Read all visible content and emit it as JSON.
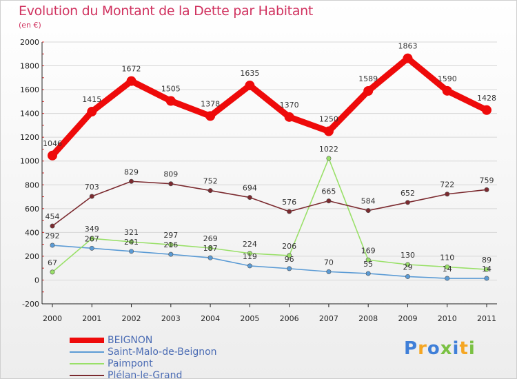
{
  "chart_data": {
    "type": "line",
    "title": "Evolution du Montant de la Dette par Habitant",
    "subtitle": "(en €)",
    "xlabel": "",
    "ylabel": "",
    "ylim": [
      -200,
      2000
    ],
    "y_ticks": [
      "-200",
      "0",
      "200",
      "400",
      "600",
      "800",
      "1000",
      "1200",
      "1400",
      "1600",
      "1800",
      "2000"
    ],
    "categories": [
      "2000",
      "2001",
      "2002",
      "2003",
      "2004",
      "2005",
      "2006",
      "2007",
      "2008",
      "2009",
      "2010",
      "2011"
    ],
    "series": [
      {
        "name": "BEIGNON",
        "color": "#ee0a0a",
        "values": [
          1046,
          1415,
          1672,
          1505,
          1378,
          1635,
          1370,
          1250,
          1589,
          1863,
          1590,
          1428
        ],
        "labels": [
          "1046",
          "1415",
          "1672",
          "1505",
          "1378",
          "1635",
          "1370",
          "1250",
          "1589",
          "1863",
          "1590",
          "1428"
        ]
      },
      {
        "name": "Saint-Malo-de-Beignon",
        "color": "#5b9bd5",
        "values": [
          292,
          267,
          241,
          216,
          187,
          119,
          96,
          70,
          55,
          29,
          14,
          14
        ],
        "labels": [
          "292",
          "267",
          "241",
          "216",
          "187",
          "119",
          "96",
          "70",
          "55",
          "29",
          "14",
          "14"
        ]
      },
      {
        "name": "Paimpont",
        "color": "#99e068",
        "values": [
          67,
          349,
          321,
          297,
          269,
          224,
          206,
          1022,
          169,
          130,
          110,
          89
        ],
        "labels": [
          "67",
          "349",
          "321",
          "297",
          "269",
          "224",
          "206",
          "1022",
          "169",
          "130",
          "110",
          "89"
        ]
      },
      {
        "name": "Plélan-le-Grand",
        "color": "#7b2a2f",
        "values": [
          454,
          703,
          829,
          809,
          752,
          694,
          576,
          665,
          584,
          652,
          722,
          759
        ],
        "labels": [
          "454",
          "703",
          "829",
          "809",
          "752",
          "694",
          "576",
          "665",
          "584",
          "652",
          "722",
          "759"
        ]
      }
    ],
    "legend_position": "bottom-left"
  },
  "brand": {
    "letters": [
      "P",
      "r",
      "o",
      "x",
      "i",
      "t",
      "i"
    ],
    "colors": [
      "#3f7fd8",
      "#f5a623",
      "#3f7fd8",
      "#7ac143",
      "#3f7fd8",
      "#f5a623",
      "#7ac143"
    ]
  }
}
